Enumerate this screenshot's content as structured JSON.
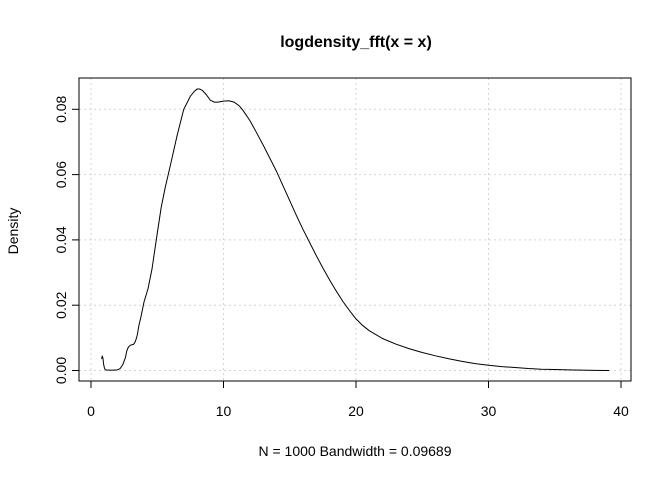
{
  "chart_data": {
    "type": "line",
    "title": "logdensity_fft(x = x)",
    "xlabel": "N = 1000   Bandwidth = 0.09689",
    "ylabel": "Density",
    "xlim": [
      0,
      40
    ],
    "ylim": [
      0,
      0.08
    ],
    "x_ticks": [
      0,
      10,
      20,
      30,
      40
    ],
    "y_ticks": [
      0.0,
      0.02,
      0.04,
      0.06,
      0.08
    ],
    "x_tick_labels": [
      "0",
      "10",
      "20",
      "30",
      "40"
    ],
    "y_tick_labels": [
      "0.00",
      "0.02",
      "0.04",
      "0.06",
      "0.08"
    ],
    "grid": true,
    "line_color": "#000000",
    "grid_color": "#d3d3d3",
    "series": [
      {
        "x": [
          0.8,
          0.85,
          0.9,
          0.95,
          1.0,
          1.05,
          1.1,
          1.2,
          1.4,
          1.7,
          2.0,
          2.2,
          2.4,
          2.6,
          2.7,
          2.8,
          2.9,
          3.0,
          3.1,
          3.2,
          3.3,
          3.4,
          3.5,
          3.6,
          3.8,
          4.0,
          4.3,
          4.6,
          5.0,
          5.3,
          5.6,
          6.0,
          6.5,
          7.0,
          7.5,
          7.8,
          8.0,
          8.2,
          8.4,
          8.7,
          9.0,
          9.3,
          9.6,
          10.0,
          10.4,
          10.8,
          11.2,
          11.5,
          12.0,
          12.5,
          13.0,
          13.5,
          14.0,
          14.5,
          15.0,
          15.5,
          16.0,
          16.5,
          17.0,
          17.5,
          18.0,
          18.5,
          19.0,
          19.5,
          20.0,
          20.5,
          21.0,
          22.0,
          23.0,
          24.0,
          25.0,
          26.0,
          27.0,
          28.0,
          29.0,
          30.0,
          31.0,
          32.0,
          33.0,
          34.0,
          35.0,
          36.0,
          37.0,
          38.0,
          39.1
        ],
        "y": [
          0.0035,
          0.0045,
          0.0038,
          0.002,
          0.001,
          0.0004,
          0.0002,
          0.0001,
          0.0001,
          0.0001,
          0.0002,
          0.0006,
          0.0018,
          0.004,
          0.006,
          0.007,
          0.0075,
          0.0078,
          0.0079,
          0.008,
          0.0085,
          0.0095,
          0.011,
          0.0135,
          0.017,
          0.021,
          0.025,
          0.031,
          0.042,
          0.05,
          0.056,
          0.063,
          0.072,
          0.08,
          0.084,
          0.0855,
          0.0862,
          0.0862,
          0.0858,
          0.0845,
          0.0828,
          0.0822,
          0.0822,
          0.0825,
          0.0826,
          0.0822,
          0.081,
          0.0795,
          0.0765,
          0.0728,
          0.069,
          0.065,
          0.061,
          0.0565,
          0.052,
          0.0475,
          0.0432,
          0.0392,
          0.0352,
          0.0314,
          0.0278,
          0.0244,
          0.0212,
          0.0184,
          0.0158,
          0.0138,
          0.0122,
          0.0098,
          0.0081,
          0.0067,
          0.0055,
          0.0045,
          0.0036,
          0.0028,
          0.0021,
          0.0016,
          0.0012,
          0.0009,
          0.0006,
          0.0004,
          0.0003,
          0.0002,
          0.0001,
          5e-05,
          0.0
        ]
      }
    ]
  }
}
